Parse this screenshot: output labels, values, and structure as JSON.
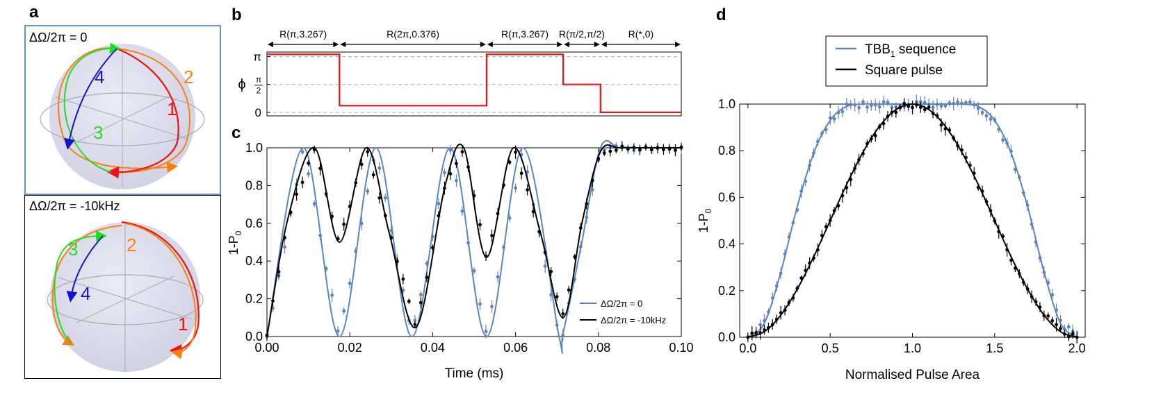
{
  "panels": {
    "a": "a",
    "b": "b",
    "c": "c",
    "d": "d"
  },
  "colors": {
    "blue": "#5b84bd",
    "black": "#000000",
    "red": "#ee1111",
    "orange": "#ff7f0e",
    "green": "#22dd22",
    "darkblue": "#1414cc",
    "sphere": "#dcdcec",
    "box_a_top": "#6b8fc8",
    "box_a_bottom": "#000000",
    "grid": "#aaaaaa"
  },
  "panel_a": {
    "top": {
      "label": "ΔΩ/2π = 0",
      "numbers": [
        {
          "text": "2",
          "color": "orange"
        },
        {
          "text": "1",
          "color": "red"
        },
        {
          "text": "4",
          "color": "darkblue"
        },
        {
          "text": "3",
          "color": "green"
        }
      ]
    },
    "bottom": {
      "label": "ΔΩ/2π = -10kHz",
      "numbers": [
        {
          "text": "3",
          "color": "green"
        },
        {
          "text": "2",
          "color": "orange"
        },
        {
          "text": "4",
          "color": "darkblue"
        },
        {
          "text": "1",
          "color": "red"
        }
      ]
    }
  },
  "chart_data": [
    {
      "panel": "b",
      "type": "line",
      "ylabel": "ϕ",
      "yticks": [
        {
          "value": 0,
          "label": "0"
        },
        {
          "value": 1.5708,
          "label_num": "π",
          "label_den": "2"
        },
        {
          "value": 3.1416,
          "label": "π"
        }
      ],
      "xlim": [
        0,
        0.1
      ],
      "ylim": [
        -0.2,
        3.4
      ],
      "grid": "dashed horizontal at ticks",
      "segments": [
        {
          "label": "R(π,3.267)",
          "start": 0.0,
          "end": 0.0175,
          "phase": 3.267
        },
        {
          "label": "R(2π,0.376)",
          "start": 0.0175,
          "end": 0.053,
          "phase": 0.376
        },
        {
          "label": "R(π,3.267)",
          "start": 0.053,
          "end": 0.0715,
          "phase": 3.267
        },
        {
          "label": "R(π/2,π/2)",
          "start": 0.0715,
          "end": 0.0805,
          "phase": 1.5708
        },
        {
          "label": "R(*,0)",
          "start": 0.0805,
          "end": 0.1,
          "phase": 0.0
        }
      ]
    },
    {
      "panel": "c",
      "type": "line",
      "xlabel": "Time (ms)",
      "ylabel": "1-P",
      "ylabel_sub": "0",
      "xlim": [
        0,
        0.1
      ],
      "ylim": [
        0,
        1.0
      ],
      "xticks": [
        "0.00",
        "0.02",
        "0.04",
        "0.06",
        "0.08",
        "0.10"
      ],
      "xtick_values": [
        0,
        0.02,
        0.04,
        0.06,
        0.08,
        0.1
      ],
      "yticks": [
        "0.0",
        "0.2",
        "0.4",
        "0.6",
        "0.8",
        "1.0"
      ],
      "ytick_values": [
        0,
        0.2,
        0.4,
        0.6,
        0.8,
        1.0
      ],
      "legend": "bottom-right",
      "series": [
        {
          "name": "ΔΩ/2π = 0",
          "color": "blue",
          "x": [
            0,
            0.0088,
            0.0175,
            0.0263,
            0.035,
            0.0442,
            0.053,
            0.0618,
            0.0705,
            0.0715,
            0.076,
            0.0805,
            0.085,
            0.09,
            0.095,
            0.1
          ],
          "y": [
            0.0,
            1.0,
            0.0,
            1.0,
            0.0,
            1.0,
            0.0,
            1.0,
            0.0,
            0.02,
            0.5,
            1.0,
            1.0,
            1.0,
            1.0,
            1.0
          ]
        },
        {
          "name": "ΔΩ/2π = -10kHz",
          "color": "black",
          "x": [
            0,
            0.005,
            0.0115,
            0.0175,
            0.024,
            0.0295,
            0.036,
            0.043,
            0.0475,
            0.053,
            0.0595,
            0.066,
            0.0715,
            0.076,
            0.0805,
            0.085,
            0.09,
            0.1
          ],
          "y": [
            0.0,
            0.62,
            1.0,
            0.5,
            1.0,
            0.55,
            0.05,
            0.8,
            1.0,
            0.42,
            1.0,
            0.55,
            0.1,
            0.6,
            0.98,
            1.0,
            1.0,
            1.0
          ]
        }
      ]
    },
    {
      "panel": "d",
      "type": "line",
      "xlabel": "Normalised Pulse Area",
      "ylabel": "1-P",
      "ylabel_sub": "0",
      "xlim": [
        -0.05,
        2.05
      ],
      "ylim": [
        0,
        1.0
      ],
      "xticks": [
        "0.0",
        "0.5",
        "1.0",
        "1.5",
        "2.0"
      ],
      "xtick_values": [
        0,
        0.5,
        1.0,
        1.5,
        2.0
      ],
      "yticks": [
        "0.0",
        "0.2",
        "0.4",
        "0.6",
        "0.8",
        "1.0"
      ],
      "ytick_values": [
        0,
        0.2,
        0.4,
        0.6,
        0.8,
        1.0
      ],
      "legend": "top",
      "series": [
        {
          "name": "TBB",
          "name_sub": "1",
          "name_suffix": " sequence",
          "color": "blue",
          "x": [
            0.0,
            0.1,
            0.2,
            0.3,
            0.4,
            0.5,
            0.6,
            0.7,
            0.8,
            0.9,
            1.0,
            1.1,
            1.2,
            1.3,
            1.4,
            1.5,
            1.6,
            1.7,
            1.8,
            1.9,
            2.0
          ],
          "y": [
            0.0,
            0.06,
            0.28,
            0.56,
            0.79,
            0.93,
            0.99,
            1.0,
            1.0,
            1.0,
            1.0,
            1.0,
            1.0,
            1.0,
            0.99,
            0.93,
            0.79,
            0.56,
            0.28,
            0.06,
            0.0
          ]
        },
        {
          "name": "Square pulse",
          "color": "black",
          "x": [
            0.0,
            0.1,
            0.2,
            0.3,
            0.4,
            0.5,
            0.6,
            0.7,
            0.8,
            0.9,
            1.0,
            1.1,
            1.2,
            1.3,
            1.4,
            1.5,
            1.6,
            1.7,
            1.8,
            1.9,
            2.0
          ],
          "y": [
            0.0,
            0.024,
            0.095,
            0.206,
            0.345,
            0.5,
            0.655,
            0.794,
            0.905,
            0.976,
            1.0,
            0.976,
            0.905,
            0.794,
            0.655,
            0.5,
            0.345,
            0.206,
            0.095,
            0.024,
            0.0
          ]
        }
      ]
    }
  ]
}
